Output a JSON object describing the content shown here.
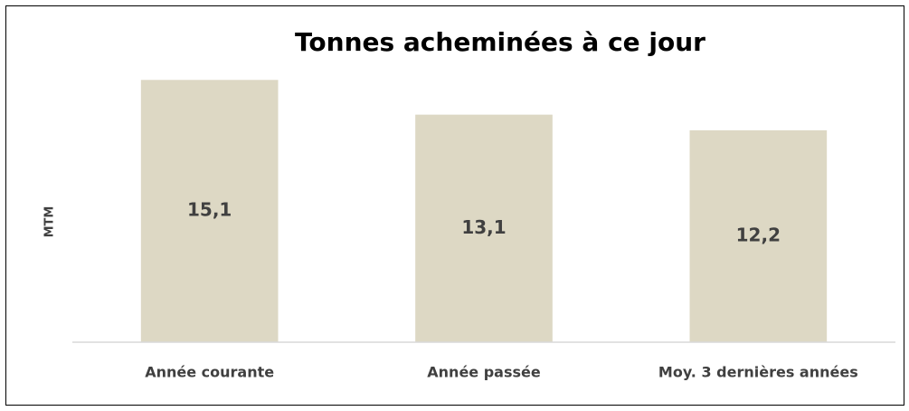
{
  "chart_data": {
    "type": "bar",
    "title": "Tonnes acheminées à ce jour",
    "y_label": "MTM",
    "categories": [
      "Année courante",
      "Année passée",
      "Moy. 3 dernières années"
    ],
    "values": [
      15.1,
      13.1,
      12.2
    ],
    "value_labels": [
      "15,1",
      "13,1",
      "12,2"
    ],
    "color": "#ddd8c4",
    "ylim": [
      0,
      16
    ],
    "grid": false
  }
}
